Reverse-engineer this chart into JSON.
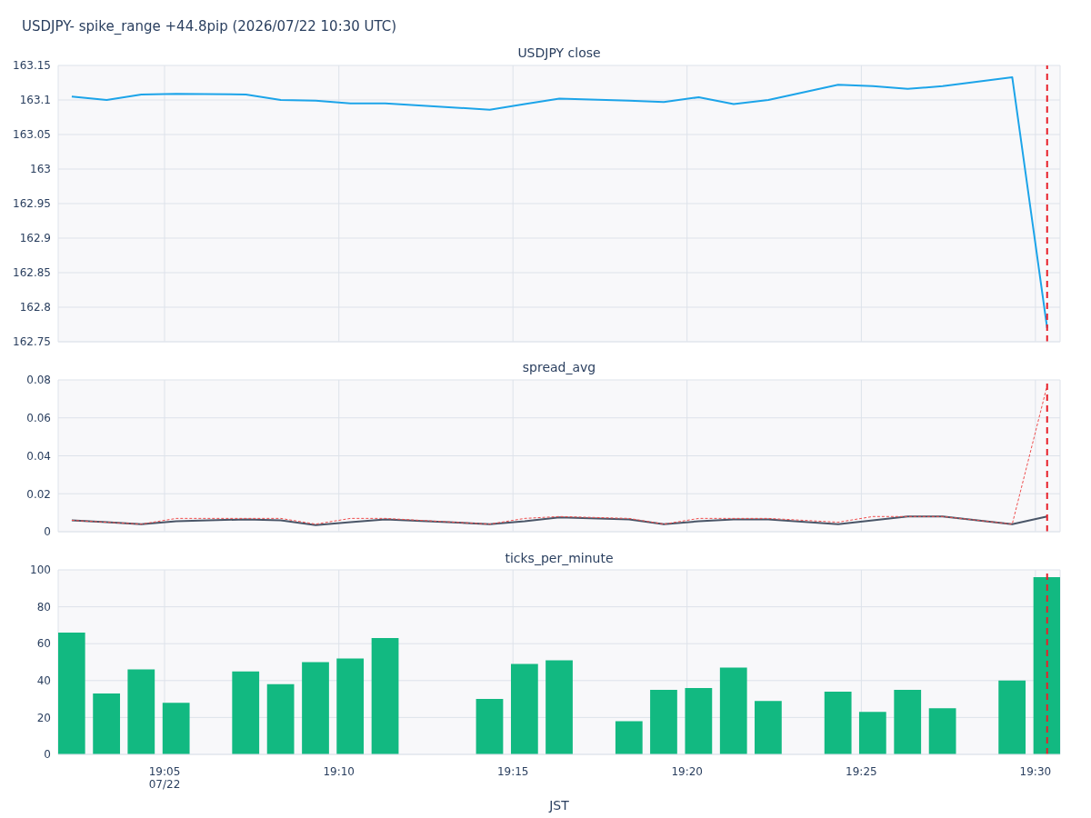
{
  "chart_data": [
    {
      "type": "line",
      "title": "USDJPY- spike_range +44.8pip (2026/07/22 10:30 UTC)",
      "subtitle": "USDJPY close",
      "x": [
        19.0389,
        19.0556,
        19.0722,
        19.0889,
        19.1222,
        19.1389,
        19.1556,
        19.1722,
        19.1889,
        19.2389,
        19.2556,
        19.2722,
        19.3056,
        19.3222,
        19.3389,
        19.3556,
        19.3722,
        19.4056,
        19.4222,
        19.4389,
        19.4556,
        19.4889,
        19.5056
      ],
      "series": [
        {
          "color": "#1ca4e9",
          "values": [
            163.105,
            163.1,
            163.108,
            163.109,
            163.108,
            163.1,
            163.099,
            163.095,
            163.095,
            163.086,
            163.094,
            163.102,
            163.099,
            163.097,
            163.104,
            163.094,
            163.1,
            163.122,
            163.12,
            163.116,
            163.12,
            163.133,
            162.77
          ]
        }
      ],
      "xlim": [
        19.0324,
        19.5118
      ],
      "xticks": [
        {
          "value": 19.0833,
          "label": null
        },
        {
          "value": 19.1667,
          "label": null
        },
        {
          "value": 19.25,
          "label": null
        },
        {
          "value": 19.3333,
          "label": null
        },
        {
          "value": 19.4167,
          "label": null
        },
        {
          "value": 19.5,
          "label": null
        }
      ],
      "ylim": [
        162.75,
        163.15
      ],
      "yticks": [
        162.75,
        162.8,
        162.85,
        162.9,
        162.95,
        163,
        163.05,
        163.1,
        163.15
      ],
      "tick_labels": "y",
      "grid": true,
      "marker": "none",
      "line_style": "solid",
      "ref_lines": [
        {
          "axis": "x",
          "value": 19.5056,
          "color": "#e8202a",
          "line_style": "dashed"
        }
      ]
    },
    {
      "type": "line",
      "title": "spread_avg",
      "x": [
        19.0389,
        19.0556,
        19.0722,
        19.0889,
        19.1222,
        19.1389,
        19.1556,
        19.1722,
        19.1889,
        19.2389,
        19.2556,
        19.2722,
        19.3056,
        19.3222,
        19.3389,
        19.3556,
        19.3722,
        19.4056,
        19.4222,
        19.4389,
        19.4556,
        19.4889,
        19.5056
      ],
      "series": [
        {
          "color": "#4a5668",
          "line_style": "solid",
          "values": [
            0.006,
            0.005,
            0.004,
            0.0055,
            0.0065,
            0.006,
            0.0035,
            0.005,
            0.0065,
            0.004,
            0.0055,
            0.0075,
            0.0065,
            0.004,
            0.0055,
            0.0065,
            0.0065,
            0.004,
            0.006,
            0.008,
            0.008,
            0.004,
            0.008
          ]
        },
        {
          "color": "#ef4d4d",
          "line_style": "dotted",
          "values": [
            0.006,
            0.005,
            0.004,
            0.007,
            0.007,
            0.007,
            0.004,
            0.007,
            0.007,
            0.004,
            0.007,
            0.008,
            0.007,
            0.004,
            0.007,
            0.007,
            0.007,
            0.005,
            0.008,
            0.008,
            0.008,
            0.004,
            0.077
          ]
        }
      ],
      "xlim": [
        19.0324,
        19.5118
      ],
      "xticks": [
        {
          "value": 19.0833,
          "label": null
        },
        {
          "value": 19.1667,
          "label": null
        },
        {
          "value": 19.25,
          "label": null
        },
        {
          "value": 19.3333,
          "label": null
        },
        {
          "value": 19.4167,
          "label": null
        },
        {
          "value": 19.5,
          "label": null
        }
      ],
      "ylim": [
        0,
        0.08
      ],
      "yticks": [
        0,
        0.02,
        0.04,
        0.06,
        0.08
      ],
      "tick_labels": "y",
      "grid": true,
      "marker": "none",
      "ref_lines": [
        {
          "axis": "x",
          "value": 19.5056,
          "color": "#e8202a",
          "line_style": "dashed"
        }
      ]
    },
    {
      "type": "bar",
      "title": "ticks_per_minute",
      "xlabel": "JST",
      "x": [
        19.0389,
        19.0556,
        19.0722,
        19.0889,
        19.1222,
        19.1389,
        19.1556,
        19.1722,
        19.1889,
        19.2389,
        19.2556,
        19.2722,
        19.3056,
        19.3222,
        19.3389,
        19.3556,
        19.3722,
        19.4056,
        19.4222,
        19.4389,
        19.4556,
        19.4889,
        19.5056
      ],
      "values": [
        66,
        33,
        46,
        28,
        45,
        38,
        50,
        52,
        63,
        30,
        49,
        51,
        18,
        35,
        36,
        47,
        29,
        34,
        23,
        35,
        25,
        40,
        96
      ],
      "color": "#12b981",
      "xlim": [
        19.0324,
        19.5118
      ],
      "xticks": [
        {
          "value": 19.0833,
          "label": "19:05\n07/22"
        },
        {
          "value": 19.1667,
          "label": "19:10"
        },
        {
          "value": 19.25,
          "label": "19:15"
        },
        {
          "value": 19.3333,
          "label": "19:20"
        },
        {
          "value": 19.4167,
          "label": "19:25"
        },
        {
          "value": 19.5,
          "label": "19:30"
        }
      ],
      "ylim": [
        0,
        100
      ],
      "yticks": [
        0,
        20,
        40,
        60,
        80,
        100
      ],
      "grid": true,
      "ref_lines": [
        {
          "axis": "x",
          "value": 19.5056,
          "color": "#e8202a",
          "line_style": "dashed"
        }
      ]
    }
  ]
}
